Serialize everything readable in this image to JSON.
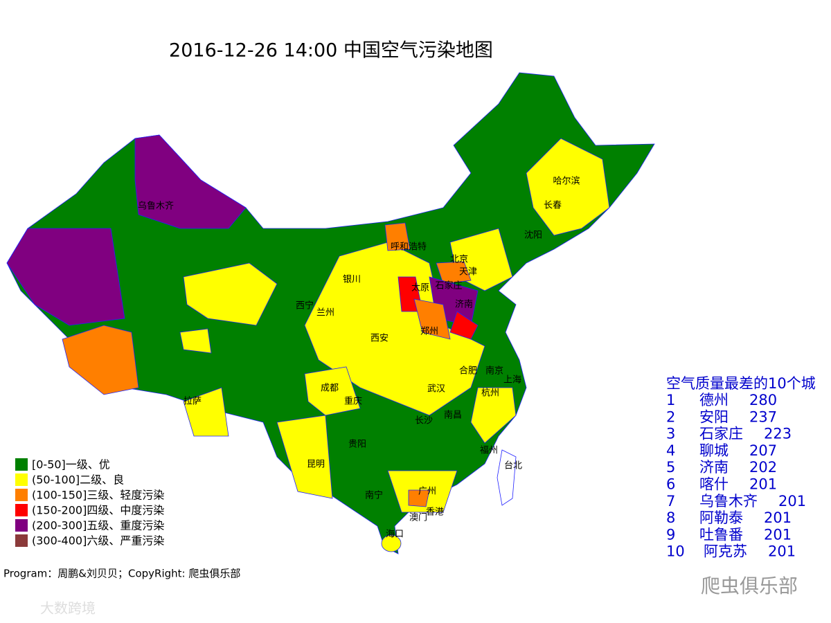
{
  "title": "2016-12-26 14:00 中国空气污染地图",
  "cities": [
    "乌鲁木齐",
    "哈尔滨",
    "长春",
    "沈阳",
    "呼和浩特",
    "北京",
    "天津",
    "银川",
    "太原",
    "石家庄",
    "西宁",
    "兰州",
    "济南",
    "西安",
    "郑州",
    "合肥",
    "南京",
    "上海",
    "杭州",
    "成都",
    "重庆",
    "武汉",
    "拉萨",
    "长沙",
    "南昌",
    "贵阳",
    "福州",
    "台北",
    "昆明",
    "南宁",
    "广州",
    "澳门",
    "香港",
    "海口"
  ],
  "legend": [
    {
      "label": "[0-50]一级、优",
      "color": "#008000"
    },
    {
      "label": "(50-100]二级、良",
      "color": "#ffff00"
    },
    {
      "label": "(100-150]三级、轻度污染",
      "color": "#ff7f00"
    },
    {
      "label": "(150-200]四级、中度污染",
      "color": "#ff0000"
    },
    {
      "label": "(200-300]五级、重度污染",
      "color": "#800080"
    },
    {
      "label": "(300-400]六级、严重污染",
      "color": "#8b3a3a"
    }
  ],
  "ranking": {
    "title": "空气质量最差的10个城",
    "rows": [
      {
        "rank": 1,
        "city": "德州",
        "aqi": 280
      },
      {
        "rank": 2,
        "city": "安阳",
        "aqi": 237
      },
      {
        "rank": 3,
        "city": "石家庄",
        "aqi": 223
      },
      {
        "rank": 4,
        "city": "聊城",
        "aqi": 207
      },
      {
        "rank": 5,
        "city": "济南",
        "aqi": 202
      },
      {
        "rank": 6,
        "city": "喀什",
        "aqi": 201
      },
      {
        "rank": 7,
        "city": "乌鲁木齐",
        "aqi": 201
      },
      {
        "rank": 8,
        "city": "阿勒泰",
        "aqi": 201
      },
      {
        "rank": 9,
        "city": "吐鲁番",
        "aqi": 201
      },
      {
        "rank": 10,
        "city": "阿克苏",
        "aqi": 201
      }
    ]
  },
  "credit": "Program：周鹏&刘贝贝；CopyRight: 爬虫俱乐部",
  "watermarks": [
    "大数跨境",
    "爬虫俱乐部"
  ]
}
